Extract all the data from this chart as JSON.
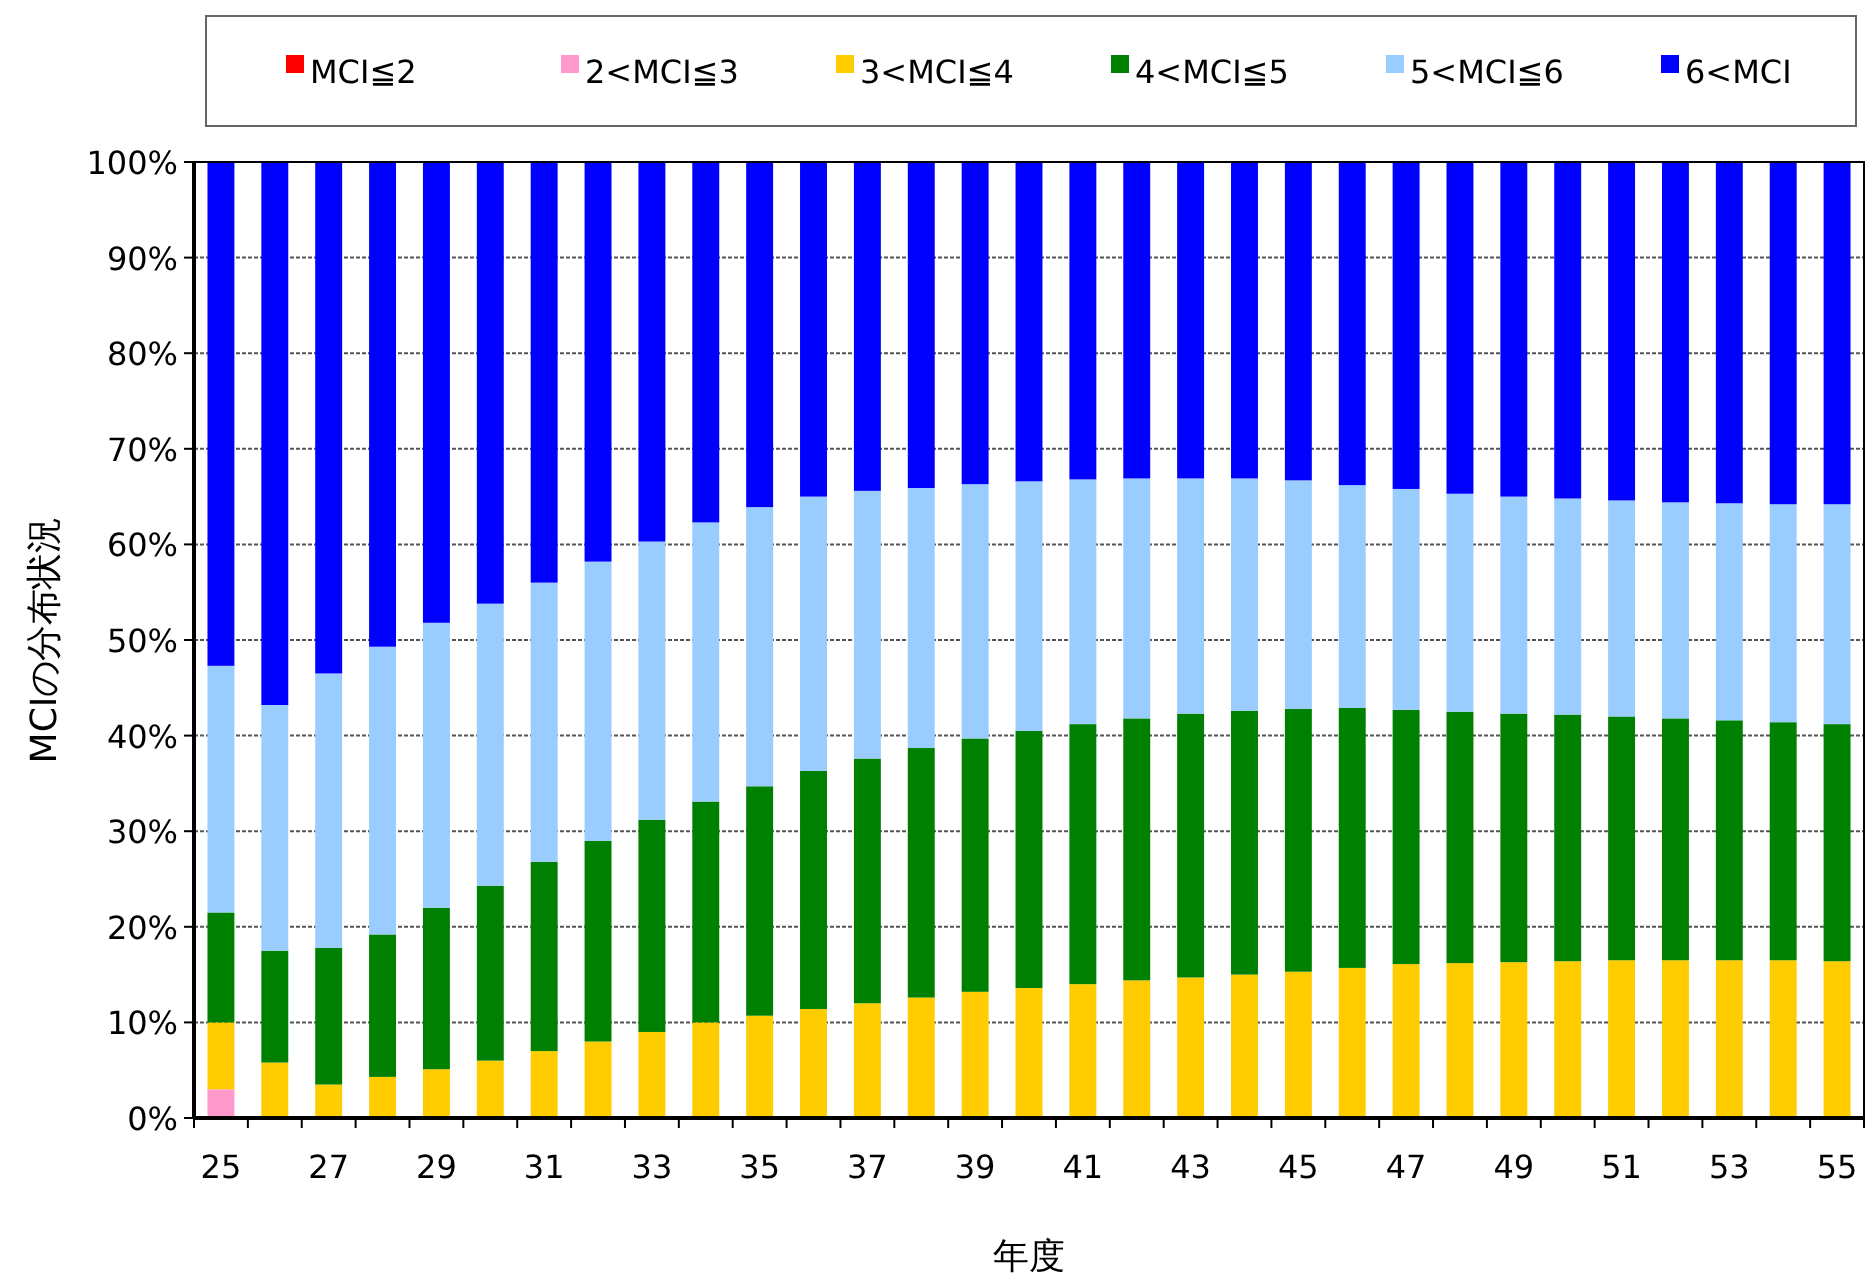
{
  "chart_data": {
    "type": "bar",
    "stacked": true,
    "xlabel": "年度",
    "ylabel": "MCIの分布状況",
    "categories": [
      "25",
      null,
      "27",
      null,
      "29",
      null,
      "31",
      null,
      "33",
      null,
      "35",
      null,
      "37",
      null,
      "39",
      null,
      "41",
      null,
      "43",
      null,
      "45",
      null,
      "47",
      null,
      "49",
      null,
      "51",
      null,
      "53",
      null,
      "55"
    ],
    "ylim": [
      0,
      100
    ],
    "yticks": [
      {
        "value": 0,
        "label": "0%"
      },
      {
        "value": 10,
        "label": "10%"
      },
      {
        "value": 20,
        "label": "20%"
      },
      {
        "value": 30,
        "label": "30%"
      },
      {
        "value": 40,
        "label": "40%"
      },
      {
        "value": 50,
        "label": "50%"
      },
      {
        "value": 60,
        "label": "60%"
      },
      {
        "value": 70,
        "label": "70%"
      },
      {
        "value": 80,
        "label": "80%"
      },
      {
        "value": 90,
        "label": "90%"
      },
      {
        "value": 100,
        "label": "100%"
      }
    ],
    "grid": "y",
    "legend": "top",
    "series": [
      {
        "name": "MCI≦2",
        "color": "#ff0000",
        "values": [
          0,
          0,
          0,
          0,
          0,
          0,
          0,
          0,
          0,
          0,
          0,
          0,
          0,
          0,
          0,
          0,
          0,
          0,
          0,
          0,
          0,
          0,
          0,
          0,
          0,
          0,
          0,
          0,
          0,
          0,
          0
        ]
      },
      {
        "name": "2<MCI≦3",
        "color": "#ff99cc",
        "values": [
          3,
          0,
          0,
          0,
          0,
          0,
          0,
          0,
          0,
          0,
          0,
          0,
          0,
          0,
          0,
          0,
          0,
          0,
          0,
          0,
          0,
          0,
          0,
          0,
          0,
          0,
          0,
          0,
          0,
          0,
          0
        ]
      },
      {
        "name": "3<MCI≦4",
        "color": "#ffcc00",
        "values": [
          7,
          5.8,
          3.5,
          4.3,
          5.1,
          6,
          7,
          8,
          9,
          10,
          10.7,
          11.4,
          12,
          12.6,
          13.2,
          13.6,
          14,
          14.4,
          14.7,
          15,
          15.3,
          15.7,
          16.1,
          16.2,
          16.3,
          16.4,
          16.5,
          16.5,
          16.5,
          16.5,
          16.4
        ]
      },
      {
        "name": "4<MCI≦5",
        "color": "#008000",
        "values": [
          11.5,
          11.7,
          14.3,
          14.9,
          16.9,
          18.3,
          19.8,
          21,
          22.2,
          23.1,
          24,
          24.9,
          25.6,
          26.1,
          26.5,
          26.9,
          27.2,
          27.4,
          27.6,
          27.6,
          27.5,
          27.2,
          26.6,
          26.3,
          26,
          25.8,
          25.5,
          25.3,
          25.1,
          24.9,
          24.8
        ]
      },
      {
        "name": "5<MCI≦6",
        "color": "#99ccff",
        "values": [
          25.8,
          25.7,
          28.7,
          30.1,
          29.8,
          29.5,
          29.2,
          29.2,
          29.1,
          29.2,
          29.2,
          28.7,
          28,
          27.2,
          26.6,
          26.1,
          25.6,
          25.1,
          24.6,
          24.3,
          23.9,
          23.3,
          23.1,
          22.8,
          22.7,
          22.6,
          22.6,
          22.6,
          22.7,
          22.8,
          23
        ]
      },
      {
        "name": "6<MCI",
        "color": "#0000ff",
        "values": [
          52.7,
          56.8,
          53.5,
          50.7,
          48.2,
          46.2,
          44,
          41.8,
          39.7,
          37.7,
          36.1,
          35,
          34.4,
          34.1,
          33.7,
          33.4,
          33.2,
          33.1,
          33.1,
          33.1,
          33.3,
          33.8,
          34.2,
          34.7,
          35,
          35.2,
          35.4,
          35.6,
          35.7,
          35.8,
          35.8
        ]
      }
    ]
  }
}
